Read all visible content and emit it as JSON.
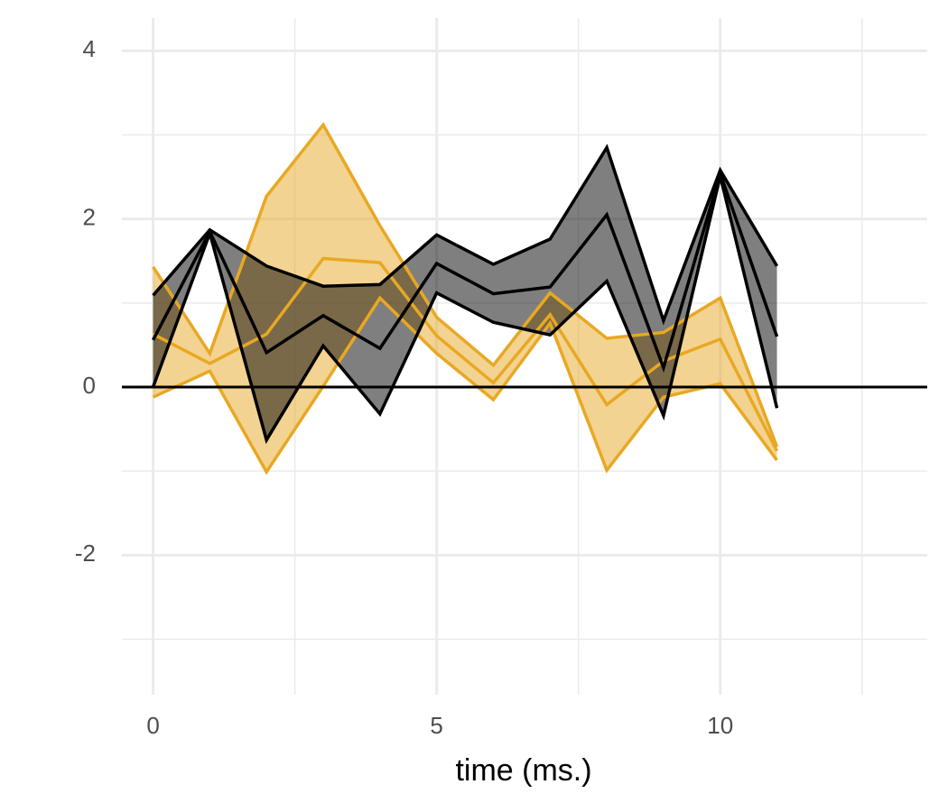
{
  "chart_data": {
    "type": "ribbon",
    "x_label": "time (ms.)",
    "x": [
      0,
      1,
      2,
      3,
      4,
      5,
      6,
      7,
      8,
      9,
      10,
      11
    ],
    "series": [
      {
        "color": "#E8A823",
        "upper": [
          1.43,
          0.4,
          2.27,
          3.12,
          1.92,
          0.83,
          0.26,
          1.12,
          0.58,
          0.65,
          1.06,
          -0.71
        ],
        "values": [
          0.63,
          0.28,
          0.63,
          1.53,
          1.48,
          0.61,
          0.05,
          0.86,
          -0.21,
          0.31,
          0.57,
          -0.76
        ],
        "lower": [
          -0.12,
          0.19,
          -1.01,
          0.01,
          1.06,
          0.4,
          -0.15,
          0.76,
          -0.99,
          -0.12,
          0.04,
          -0.87
        ]
      },
      {
        "color": "#000000",
        "upper": [
          1.09,
          1.87,
          1.44,
          1.2,
          1.22,
          1.81,
          1.46,
          1.76,
          2.85,
          0.79,
          2.58,
          1.44
        ],
        "values": [
          0.56,
          1.85,
          0.41,
          0.85,
          0.46,
          1.47,
          1.11,
          1.19,
          2.05,
          0.23,
          2.54,
          0.6
        ],
        "lower": [
          0.0,
          1.83,
          -0.63,
          0.49,
          -0.32,
          1.12,
          0.77,
          0.62,
          1.26,
          -0.34,
          2.51,
          -0.25
        ]
      }
    ],
    "hline": 0,
    "xlim": [
      -0.55,
      13.65
    ],
    "ylim": [
      -3.66,
      4.39
    ],
    "xticks": [
      0,
      5,
      10
    ],
    "yticks": [
      -2,
      0,
      2,
      4
    ],
    "xminor": [
      2.5,
      7.5,
      12.5
    ],
    "yminor": [
      -3,
      -1,
      1,
      3
    ],
    "grid": true
  }
}
